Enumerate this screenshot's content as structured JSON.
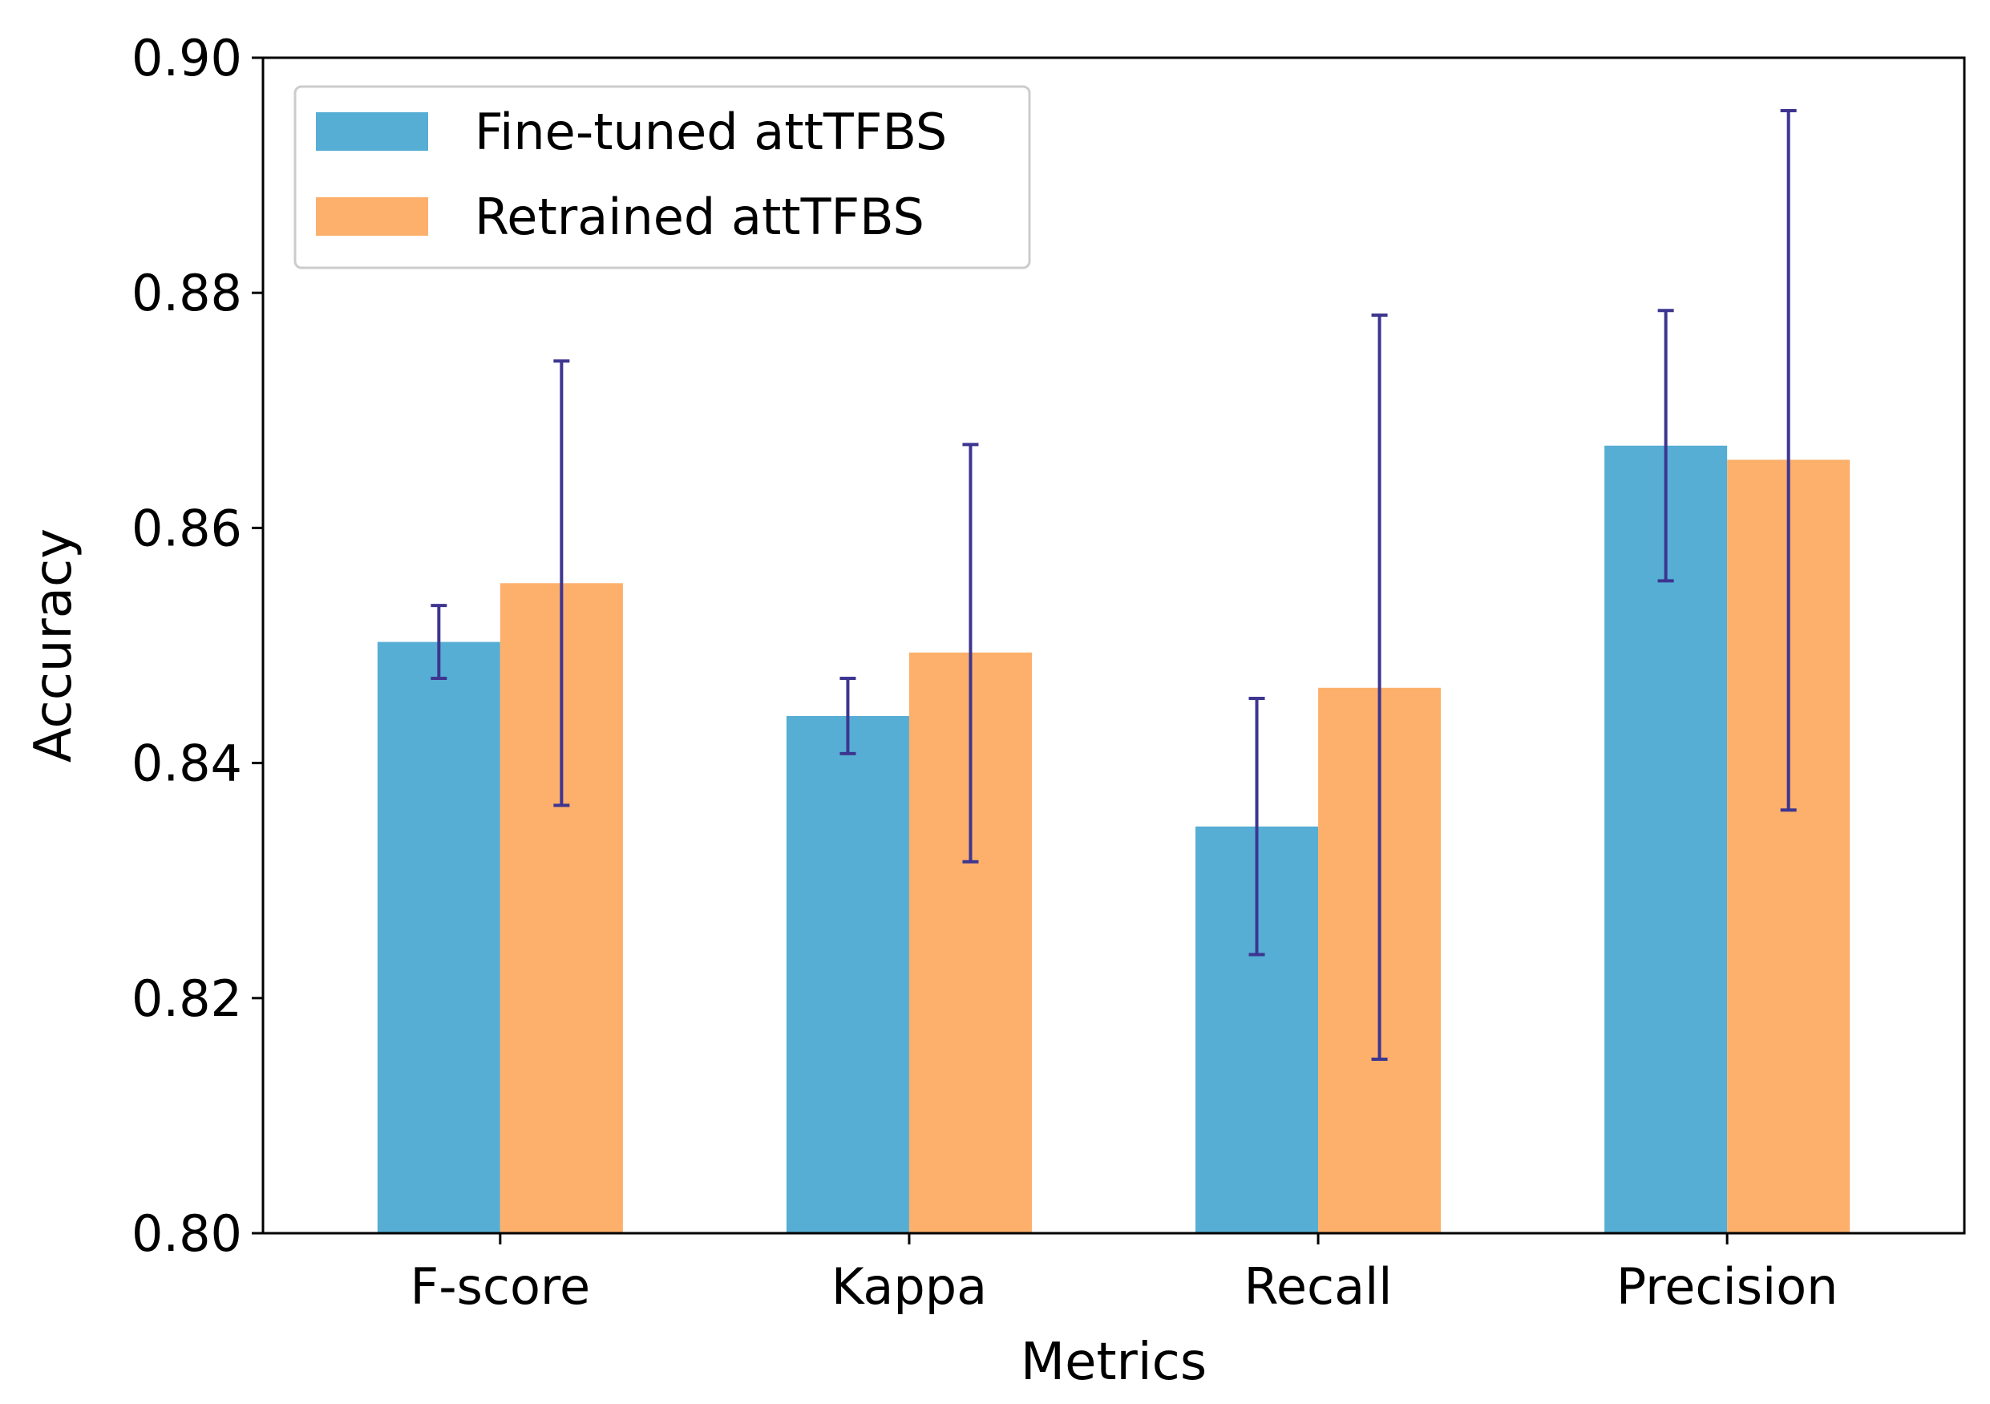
{
  "chart_data": {
    "type": "bar",
    "categories": [
      "F-score",
      "Kappa",
      "Recall",
      "Precision"
    ],
    "series": [
      {
        "name": "Fine-tuned attTFBS",
        "color": "#56AED4",
        "values": [
          0.8503,
          0.844,
          0.8346,
          0.867
        ],
        "error_low": [
          0.8472,
          0.8408,
          0.8237,
          0.8555
        ],
        "error_high": [
          0.8534,
          0.8472,
          0.8455,
          0.8785
        ]
      },
      {
        "name": "Retrained attTFBS",
        "color": "#FDB06B",
        "values": [
          0.8553,
          0.8494,
          0.8464,
          0.8658
        ],
        "error_low": [
          0.8364,
          0.8316,
          0.8148,
          0.836
        ],
        "error_high": [
          0.8742,
          0.8671,
          0.8781,
          0.8955
        ]
      }
    ],
    "error_bar_color": "#3D3590",
    "xlabel": "Metrics",
    "ylabel": "Accuracy",
    "ylim": [
      0.8,
      0.9
    ],
    "yticks": [
      "0.80",
      "0.82",
      "0.84",
      "0.86",
      "0.88",
      "0.90"
    ],
    "grid": false,
    "legend_position": "top-left"
  }
}
